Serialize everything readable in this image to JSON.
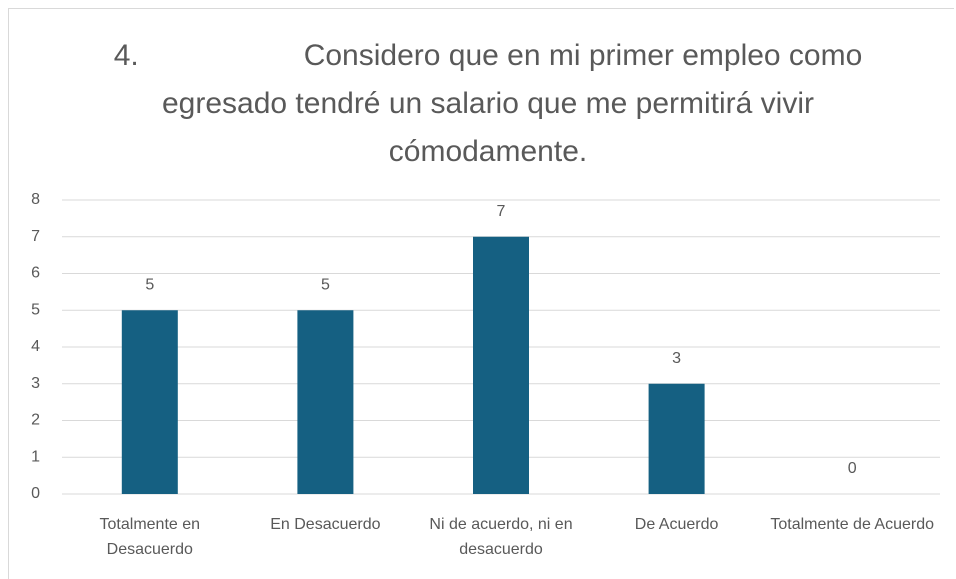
{
  "chart_data": {
    "type": "bar",
    "title": "4.\tConsidero que en mi primer empleo como egresado tendré un salario que me permitirá vivir cómodamente.",
    "categories": [
      "Totalmente en Desacuerdo",
      "En Desacuerdo",
      "Ni de acuerdo, ni en desacuerdo",
      "De Acuerdo",
      "Totalmente de Acuerdo"
    ],
    "values": [
      5,
      5,
      7,
      3,
      0
    ],
    "color": "#156082",
    "ylim": [
      0,
      8
    ],
    "yticks": [
      0,
      1,
      2,
      3,
      4,
      5,
      6,
      7,
      8
    ],
    "grid": true
  }
}
